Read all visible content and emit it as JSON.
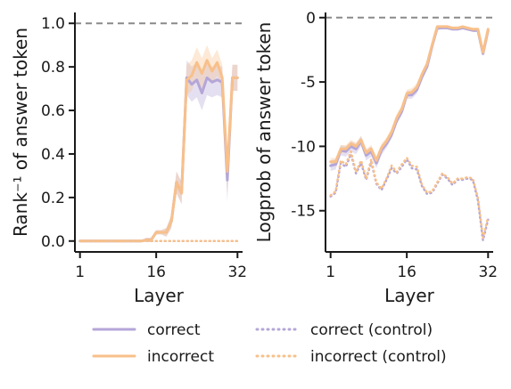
{
  "colors": {
    "correct": "#b4a6d8",
    "incorrect": "#f8c08a",
    "reference": "#8a8a8a",
    "axis": "#1a1a1a"
  },
  "legend": [
    {
      "label": "correct",
      "series": "correct",
      "style": "solid"
    },
    {
      "label": "incorrect",
      "series": "incorrect",
      "style": "solid"
    },
    {
      "label": "correct (control)",
      "series": "correct",
      "style": "dotted"
    },
    {
      "label": "incorrect (control)",
      "series": "incorrect",
      "style": "dotted"
    }
  ],
  "chart_data": [
    {
      "type": "line",
      "xlabel": "Layer",
      "ylabel": "Rank⁻¹ of answer token",
      "xticks": [
        1,
        16,
        32
      ],
      "yticks": [
        0.0,
        0.2,
        0.4,
        0.6,
        0.8,
        1.0
      ],
      "ytick_labels": [
        "0.0",
        "0.2",
        "0.4",
        "0.6",
        "0.8",
        "1.0"
      ],
      "xlim": [
        0,
        33
      ],
      "ylim": [
        -0.05,
        1.05
      ],
      "reference_line": {
        "y": 1.0,
        "style": "dashed"
      },
      "x": [
        1,
        2,
        3,
        4,
        5,
        6,
        7,
        8,
        9,
        10,
        11,
        12,
        13,
        14,
        15,
        16,
        17,
        18,
        19,
        20,
        21,
        22,
        23,
        24,
        25,
        26,
        27,
        28,
        29,
        30,
        31,
        32
      ],
      "series": [
        {
          "name": "correct",
          "style": "solid",
          "values": [
            0,
            0,
            0,
            0,
            0,
            0,
            0,
            0,
            0,
            0,
            0,
            0,
            0,
            0.005,
            0.005,
            0.04,
            0.04,
            0.04,
            0.09,
            0.27,
            0.22,
            0.75,
            0.72,
            0.74,
            0.68,
            0.75,
            0.73,
            0.74,
            0.73,
            0.28,
            0.75,
            0.75
          ],
          "band": [
            0,
            0,
            0,
            0,
            0,
            0,
            0,
            0,
            0,
            0,
            0,
            0,
            0,
            0.01,
            0.01,
            0.01,
            0.01,
            0.02,
            0.03,
            0.05,
            0.05,
            0.08,
            0.08,
            0.08,
            0.08,
            0.08,
            0.07,
            0.07,
            0.07,
            0.1,
            0.06,
            0.06
          ]
        },
        {
          "name": "incorrect",
          "style": "solid",
          "values": [
            0,
            0,
            0,
            0,
            0,
            0,
            0,
            0,
            0,
            0,
            0,
            0,
            0,
            0.005,
            0.005,
            0.04,
            0.04,
            0.04,
            0.09,
            0.27,
            0.22,
            0.74,
            0.76,
            0.82,
            0.77,
            0.83,
            0.78,
            0.82,
            0.75,
            0.32,
            0.75,
            0.75
          ],
          "band": [
            0,
            0,
            0,
            0,
            0,
            0,
            0,
            0,
            0,
            0,
            0,
            0,
            0,
            0.01,
            0.01,
            0.01,
            0.01,
            0.02,
            0.03,
            0.05,
            0.05,
            0.07,
            0.07,
            0.07,
            0.07,
            0.07,
            0.06,
            0.06,
            0.06,
            0.1,
            0.06,
            0.06
          ]
        },
        {
          "name": "correct (control)",
          "style": "dotted",
          "values": [
            0,
            0,
            0,
            0,
            0,
            0,
            0,
            0,
            0,
            0,
            0,
            0,
            0,
            0,
            0,
            0,
            0,
            0,
            0,
            0,
            0,
            0,
            0,
            0,
            0,
            0,
            0,
            0,
            0,
            0,
            0,
            0
          ]
        },
        {
          "name": "incorrect (control)",
          "style": "dotted",
          "values": [
            0,
            0,
            0,
            0,
            0,
            0,
            0,
            0,
            0,
            0,
            0,
            0,
            0,
            0,
            0,
            0,
            0,
            0,
            0,
            0,
            0,
            0,
            0,
            0,
            0,
            0,
            0,
            0,
            0,
            0,
            0,
            0
          ]
        }
      ]
    },
    {
      "type": "line",
      "xlabel": "Layer",
      "ylabel": "Logprob of answer token",
      "xticks": [
        1,
        16,
        32
      ],
      "yticks": [
        0,
        -5,
        -10,
        -15
      ],
      "ytick_labels": [
        "0",
        "-5",
        "-10",
        "-15"
      ],
      "xlim": [
        0,
        33
      ],
      "ylim": [
        -18.2,
        0.4
      ],
      "reference_line": {
        "y": 0,
        "style": "dashed"
      },
      "x": [
        1,
        2,
        3,
        4,
        5,
        6,
        7,
        8,
        9,
        10,
        11,
        12,
        13,
        14,
        15,
        16,
        17,
        18,
        19,
        20,
        21,
        22,
        23,
        24,
        25,
        26,
        27,
        28,
        29,
        30,
        31,
        32
      ],
      "series": [
        {
          "name": "correct",
          "style": "solid",
          "values": [
            -11.5,
            -11.4,
            -10.3,
            -10.4,
            -10.0,
            -10.2,
            -9.6,
            -10.7,
            -10.4,
            -11.3,
            -10.3,
            -9.8,
            -9.1,
            -8.0,
            -7.3,
            -6.0,
            -6.0,
            -5.6,
            -4.6,
            -3.8,
            -2.2,
            -0.8,
            -0.8,
            -0.8,
            -0.9,
            -0.9,
            -0.8,
            -0.9,
            -1.0,
            -1.0,
            -2.8,
            -1.0
          ],
          "band": [
            0.4,
            0.4,
            0.4,
            0.4,
            0.4,
            0.4,
            0.4,
            0.4,
            0.4,
            0.4,
            0.4,
            0.3,
            0.3,
            0.3,
            0.3,
            0.3,
            0.3,
            0.3,
            0.3,
            0.2,
            0.2,
            0.2,
            0.1,
            0.1,
            0.1,
            0.1,
            0.1,
            0.1,
            0.1,
            0.1,
            0.2,
            0.1
          ]
        },
        {
          "name": "incorrect",
          "style": "solid",
          "values": [
            -11.2,
            -11.2,
            -10.2,
            -10.2,
            -9.8,
            -10.0,
            -9.5,
            -10.5,
            -10.2,
            -11.1,
            -10.1,
            -9.6,
            -8.9,
            -7.8,
            -7.1,
            -5.9,
            -5.8,
            -5.4,
            -4.4,
            -3.6,
            -2.1,
            -0.7,
            -0.7,
            -0.7,
            -0.8,
            -0.8,
            -0.7,
            -0.8,
            -0.9,
            -0.9,
            -2.7,
            -0.9
          ],
          "band": [
            0.3,
            0.3,
            0.3,
            0.3,
            0.3,
            0.3,
            0.3,
            0.3,
            0.3,
            0.3,
            0.3,
            0.3,
            0.3,
            0.3,
            0.3,
            0.3,
            0.3,
            0.3,
            0.2,
            0.2,
            0.2,
            0.1,
            0.1,
            0.1,
            0.1,
            0.1,
            0.1,
            0.1,
            0.1,
            0.1,
            0.2,
            0.1
          ]
        },
        {
          "name": "correct (control)",
          "style": "dotted",
          "values": [
            -13.9,
            -13.6,
            -11.3,
            -11.6,
            -10.6,
            -12.1,
            -11.3,
            -12.6,
            -11.2,
            -12.9,
            -13.4,
            -12.6,
            -11.7,
            -12.1,
            -11.6,
            -11.0,
            -11.7,
            -11.8,
            -13.1,
            -13.7,
            -13.6,
            -12.9,
            -12.2,
            -12.5,
            -13.0,
            -12.6,
            -12.6,
            -12.5,
            -12.6,
            -14.2,
            -17.3,
            -15.7
          ]
        },
        {
          "name": "incorrect (control)",
          "style": "dotted",
          "values": [
            -13.8,
            -13.5,
            -11.1,
            -11.4,
            -10.4,
            -12.0,
            -11.1,
            -12.5,
            -11.0,
            -12.8,
            -13.3,
            -12.5,
            -11.5,
            -12.0,
            -11.4,
            -10.9,
            -11.5,
            -11.6,
            -13.0,
            -13.6,
            -13.5,
            -12.8,
            -12.1,
            -12.4,
            -12.9,
            -12.5,
            -12.5,
            -12.4,
            -12.5,
            -14.0,
            -17.1,
            -15.5
          ]
        }
      ]
    }
  ]
}
